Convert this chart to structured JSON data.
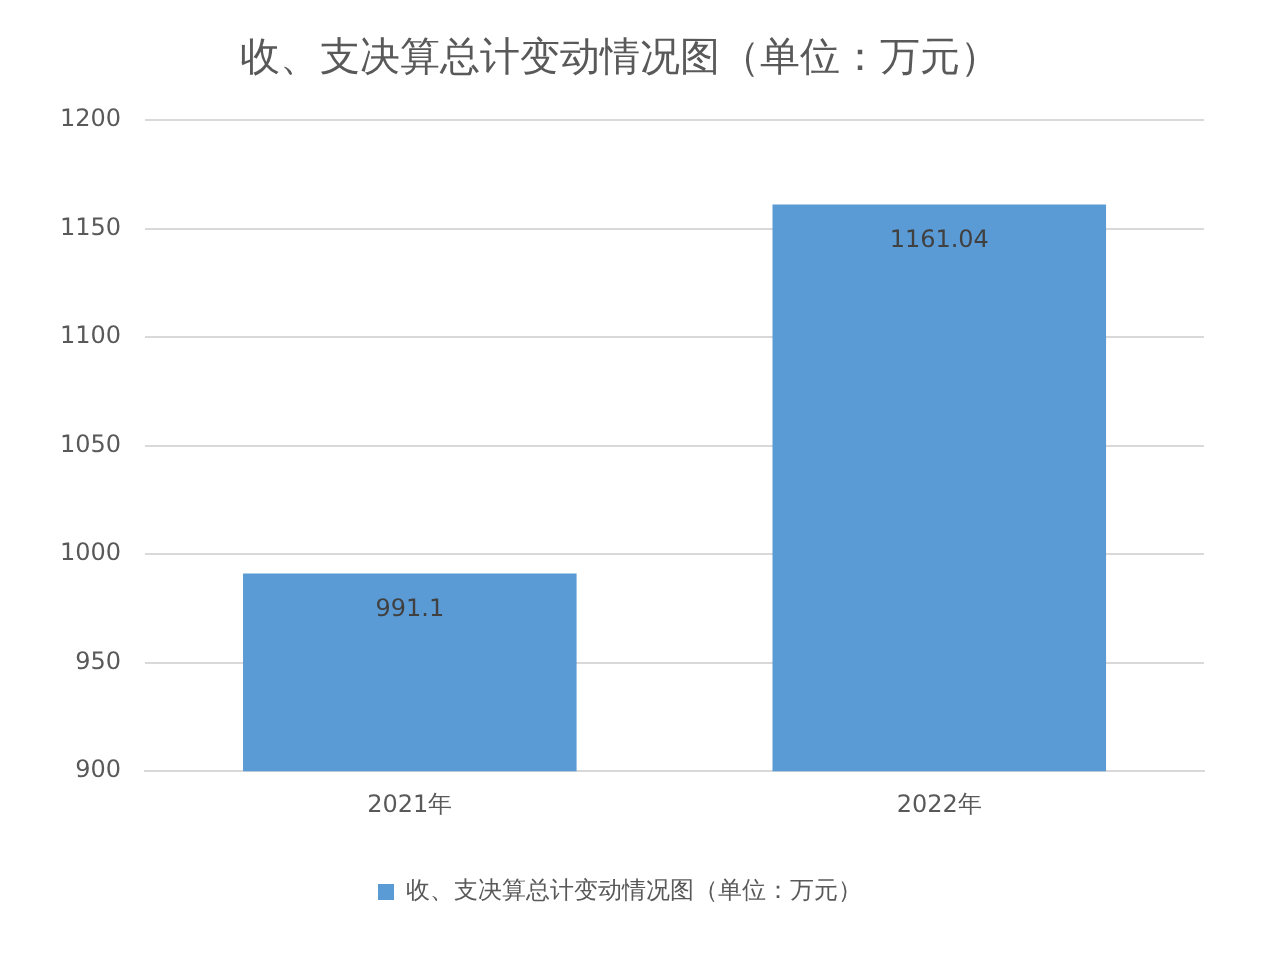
{
  "chart_data": {
    "type": "bar",
    "title": "收、支决算总计变动情况图（单位：万元）",
    "categories": [
      "2021年",
      "2022年"
    ],
    "series": [
      {
        "name": "收、支决算总计变动情况图（单位：万元）",
        "color": "#5b9bd5",
        "values": [
          991.1,
          1161.04
        ]
      }
    ],
    "ylim": [
      900,
      1200
    ],
    "yticks": [
      900,
      950,
      1000,
      1050,
      1100,
      1150,
      1200
    ],
    "grid": "y",
    "legend": "bottom",
    "data_labels": true
  }
}
